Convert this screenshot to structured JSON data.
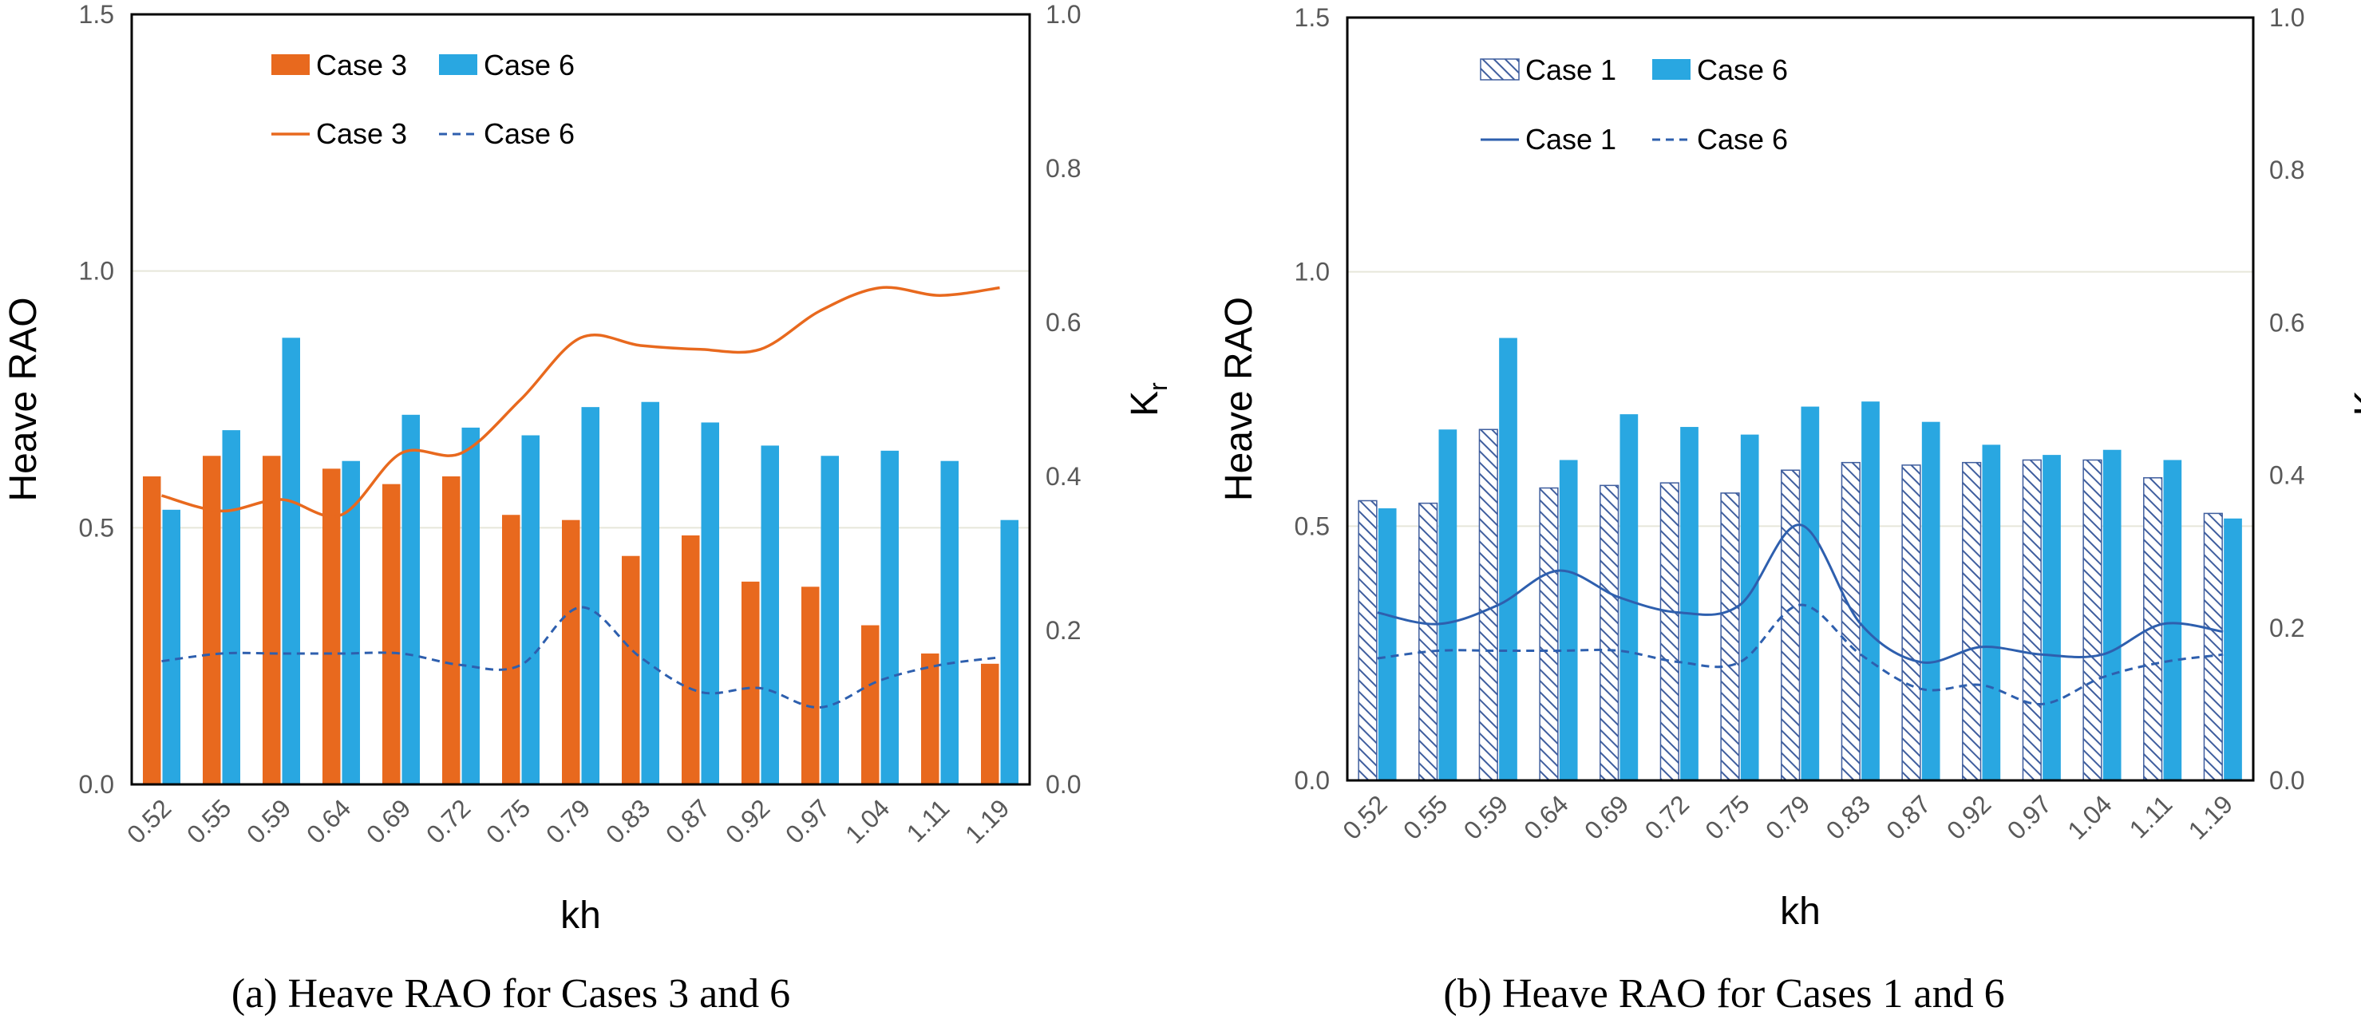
{
  "colors": {
    "orange": "#E8691E",
    "blue": "#29A7E1",
    "navy": "#2E5FAE",
    "hatch": "#3F5E9E",
    "grid": "#E6E6DA",
    "axis": "#000000"
  },
  "chart_data": [
    {
      "type": "bar",
      "id": "a",
      "caption": "(a) Heave RAO for Cases 3 and 6",
      "xlabel": "kh",
      "ylabel": "Heave RAO",
      "y2label": "K",
      "y2label_sub": "r",
      "ylim": [
        0,
        1.5
      ],
      "y2lim": [
        0,
        1.0
      ],
      "yticks": [
        "0.0",
        "0.5",
        "1.0",
        "1.5"
      ],
      "y2ticks": [
        "0.0",
        "0.2",
        "0.4",
        "0.6",
        "0.8",
        "1.0"
      ],
      "gridlines": [
        0.5,
        1.0
      ],
      "legend_position": "top-left",
      "categories": [
        "0.52",
        "0.55",
        "0.59",
        "0.64",
        "0.69",
        "0.72",
        "0.75",
        "0.79",
        "0.83",
        "0.87",
        "0.92",
        "0.97",
        "1.04",
        "1.11",
        "1.19"
      ],
      "bar_series": [
        {
          "name": "Case 3",
          "style": "orange",
          "values": [
            0.6,
            0.64,
            0.64,
            0.615,
            0.585,
            0.6,
            0.525,
            0.515,
            0.445,
            0.485,
            0.395,
            0.385,
            0.31,
            0.255,
            0.235
          ]
        },
        {
          "name": "Case 6",
          "style": "blue",
          "values": [
            0.535,
            0.69,
            0.87,
            0.63,
            0.72,
            0.695,
            0.68,
            0.735,
            0.745,
            0.705,
            0.66,
            0.64,
            0.65,
            0.63,
            0.515
          ]
        }
      ],
      "line_series": [
        {
          "name": "Case 3",
          "style": "solid-orange",
          "values": [
            0.375,
            0.355,
            0.37,
            0.35,
            0.43,
            0.43,
            0.5,
            0.58,
            0.57,
            0.565,
            0.565,
            0.615,
            0.645,
            0.635,
            0.645
          ]
        },
        {
          "name": "Case 6",
          "style": "dashed-navy",
          "values": [
            0.16,
            0.17,
            0.17,
            0.17,
            0.17,
            0.155,
            0.155,
            0.23,
            0.165,
            0.12,
            0.125,
            0.1,
            0.135,
            0.155,
            0.165
          ]
        }
      ]
    },
    {
      "type": "bar",
      "id": "b",
      "caption": "(b) Heave RAO for Cases 1 and 6",
      "xlabel": "kh",
      "ylabel": "Heave RAO",
      "y2label": "K",
      "y2label_sub": "r",
      "ylim": [
        0,
        1.5
      ],
      "y2lim": [
        0,
        1.0
      ],
      "yticks": [
        "0.0",
        "0.5",
        "1.0",
        "1.5"
      ],
      "y2ticks": [
        "0.0",
        "0.2",
        "0.4",
        "0.6",
        "0.8",
        "1.0"
      ],
      "gridlines": [
        0.5,
        1.0
      ],
      "legend_position": "top-left",
      "categories": [
        "0.52",
        "0.55",
        "0.59",
        "0.64",
        "0.69",
        "0.72",
        "0.75",
        "0.79",
        "0.83",
        "0.87",
        "0.92",
        "0.97",
        "1.04",
        "1.11",
        "1.19"
      ],
      "bar_series": [
        {
          "name": "Case 1",
          "style": "hatched",
          "values": [
            0.55,
            0.545,
            0.69,
            0.575,
            0.58,
            0.585,
            0.565,
            0.61,
            0.625,
            0.62,
            0.625,
            0.63,
            0.63,
            0.595,
            0.525
          ]
        },
        {
          "name": "Case 6",
          "style": "blue",
          "values": [
            0.535,
            0.69,
            0.87,
            0.63,
            0.72,
            0.695,
            0.68,
            0.735,
            0.745,
            0.705,
            0.66,
            0.64,
            0.65,
            0.63,
            0.515
          ]
        }
      ],
      "line_series": [
        {
          "name": "Case 1",
          "style": "solid-navy",
          "values": [
            0.22,
            0.205,
            0.23,
            0.275,
            0.24,
            0.22,
            0.23,
            0.335,
            0.205,
            0.155,
            0.175,
            0.165,
            0.165,
            0.205,
            0.195
          ]
        },
        {
          "name": "Case 6",
          "style": "dashed-navy",
          "values": [
            0.16,
            0.17,
            0.17,
            0.17,
            0.17,
            0.155,
            0.155,
            0.23,
            0.165,
            0.12,
            0.125,
            0.1,
            0.135,
            0.155,
            0.165
          ]
        }
      ]
    }
  ]
}
